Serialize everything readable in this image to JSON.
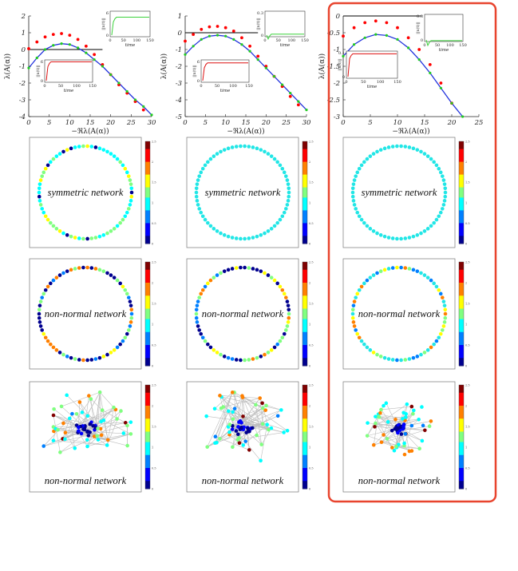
{
  "highlight_color": "#e8442e",
  "colormap": [
    "#00008f",
    "#0000ff",
    "#0080ff",
    "#00ffff",
    "#80ff80",
    "#ffff00",
    "#ff8000",
    "#ff0000",
    "#800000"
  ],
  "colorbar_ticks_label": [
    "0",
    "0.5",
    "1",
    "1.5",
    "2",
    "2.5"
  ],
  "panel_labels": {
    "symmetric": "symmetric network",
    "nonnormal": "non-normal network"
  },
  "spectrum_axis_labels": {
    "xlabel": "−ℜλ(A(α))",
    "ylabel": "λ(A(α))"
  },
  "inset_labels": {
    "time": "time",
    "norm": "||x(t)||"
  },
  "chart_data": [
    {
      "type": "scatter",
      "title": "",
      "xlabel": "−ℜλ(A(α))",
      "ylabel": "λ(A(α))",
      "xlim": [
        0,
        30
      ],
      "ylim": [
        -4,
        2
      ],
      "xticks": [
        "0",
        "5",
        "10",
        "15",
        "20",
        "25",
        "30"
      ],
      "yticks": [
        "2",
        "1",
        "0",
        "-1",
        "-2",
        "-3",
        "-4"
      ],
      "series": [
        {
          "color": "#ff0000",
          "x": [
            0,
            2,
            4,
            6,
            8,
            10,
            12,
            14,
            16,
            18,
            20,
            22,
            24,
            26,
            28
          ],
          "y": [
            0.05,
            0.45,
            0.75,
            0.9,
            0.95,
            0.85,
            0.6,
            0.2,
            -0.3,
            -0.9,
            -1.5,
            -2.1,
            -2.6,
            -3.1,
            -3.6
          ]
        },
        {
          "color": "#22cc22",
          "x": [
            0,
            2,
            4,
            6,
            8,
            10,
            12,
            14,
            16,
            18,
            20,
            22,
            24,
            26,
            28,
            30
          ],
          "y": [
            -1.1,
            -0.5,
            0.0,
            0.25,
            0.35,
            0.3,
            0.1,
            -0.2,
            -0.6,
            -1.0,
            -1.5,
            -2.0,
            -2.5,
            -3.0,
            -3.4,
            -3.9
          ]
        }
      ],
      "baseline_y": 0,
      "inset_top": {
        "ylim": [
          0,
          6
        ],
        "yticks": [
          "0",
          "6"
        ],
        "xticks": [
          "0",
          "50",
          "100",
          "150"
        ],
        "plateau": 4.6
      },
      "inset_bottom": {
        "ylim": [
          0,
          6
        ],
        "yticks": [
          "0",
          "6"
        ],
        "xticks": [
          "0",
          "50",
          "100",
          "150"
        ],
        "plateau": 5.5
      }
    },
    {
      "type": "scatter",
      "title": "",
      "xlabel": "−ℜλ(A(α))",
      "ylabel": "λ(A(α))",
      "xlim": [
        0,
        30
      ],
      "ylim": [
        -5,
        1
      ],
      "xticks": [
        "0",
        "5",
        "10",
        "15",
        "20",
        "25",
        "30"
      ],
      "yticks": [
        "1",
        "0",
        "-1",
        "-2",
        "-3",
        "-4",
        "-5"
      ],
      "series": [
        {
          "color": "#ff0000",
          "x": [
            0,
            2,
            4,
            6,
            8,
            10,
            12,
            14,
            16,
            18,
            20,
            22,
            24,
            26,
            28
          ],
          "y": [
            -0.5,
            -0.1,
            0.2,
            0.35,
            0.38,
            0.3,
            0.1,
            -0.3,
            -0.8,
            -1.4,
            -2.0,
            -2.6,
            -3.2,
            -3.8,
            -4.3
          ]
        },
        {
          "color": "#22cc22",
          "x": [
            0,
            2,
            4,
            6,
            8,
            10,
            12,
            14,
            16,
            18,
            20,
            22,
            24,
            26,
            28,
            30
          ],
          "y": [
            -1.3,
            -0.8,
            -0.4,
            -0.2,
            -0.15,
            -0.2,
            -0.4,
            -0.7,
            -1.1,
            -1.6,
            -2.1,
            -2.6,
            -3.1,
            -3.6,
            -4.1,
            -4.6
          ]
        }
      ],
      "baseline_y": 0,
      "inset_top": {
        "ylim": [
          0,
          0.3
        ],
        "yticks": [
          "0",
          "0.3"
        ],
        "xticks": [
          "0",
          "50",
          "100",
          "150"
        ],
        "plateau": 0.03
      },
      "inset_bottom": {
        "ylim": [
          0,
          6
        ],
        "yticks": [
          "0",
          "6"
        ],
        "xticks": [
          "0",
          "50",
          "100",
          "150"
        ],
        "plateau": 5.2
      }
    },
    {
      "type": "scatter",
      "title": "",
      "xlabel": "−ℜλ(A(α))",
      "ylabel": "λ(A(α))",
      "xlim": [
        0,
        25
      ],
      "ylim": [
        -3,
        0
      ],
      "xticks": [
        "0",
        "5",
        "10",
        "15",
        "20",
        "25"
      ],
      "yticks": [
        "0",
        "-0.5",
        "-1",
        "-1.5",
        "-2",
        "-2.5",
        "-3"
      ],
      "series": [
        {
          "color": "#ff0000",
          "x": [
            0,
            2,
            4,
            6,
            8,
            10,
            12,
            14,
            16,
            18,
            20
          ],
          "y": [
            -0.6,
            -0.35,
            -0.2,
            -0.15,
            -0.2,
            -0.35,
            -0.65,
            -1.0,
            -1.45,
            -2.0,
            -2.6
          ]
        },
        {
          "color": "#22cc22",
          "x": [
            0,
            2,
            4,
            6,
            8,
            10,
            12,
            14,
            16,
            18,
            20,
            22
          ],
          "y": [
            -1.2,
            -0.85,
            -0.65,
            -0.55,
            -0.58,
            -0.7,
            -0.95,
            -1.3,
            -1.7,
            -2.15,
            -2.6,
            -3.0
          ]
        }
      ],
      "baseline_y": 0,
      "inset_top": {
        "ylim": [
          0,
          0.3
        ],
        "yticks": [
          "0",
          "0.3"
        ],
        "xticks": [
          "0",
          "50",
          "100",
          "150"
        ],
        "plateau": 0.01
      },
      "inset_bottom": {
        "ylim": [
          0,
          0.1
        ],
        "yticks": [
          "0",
          "0.1"
        ],
        "xticks": [
          "0",
          "50",
          "100",
          "150"
        ],
        "plateau": 0.09
      }
    }
  ]
}
